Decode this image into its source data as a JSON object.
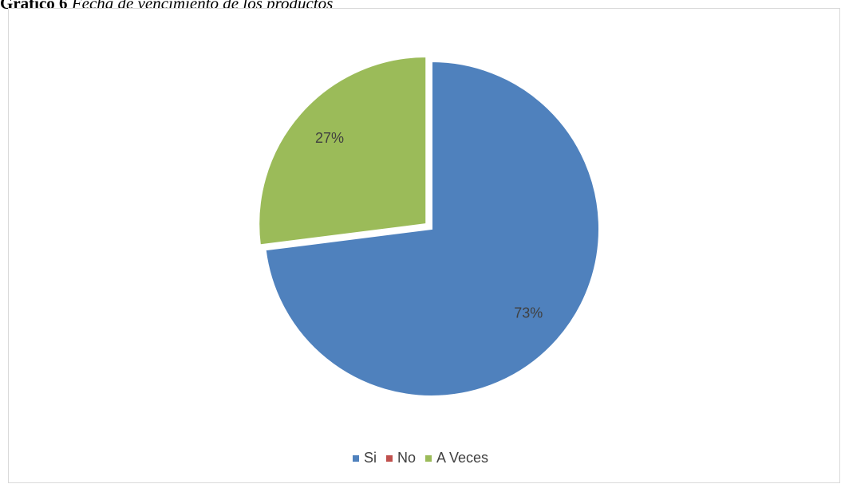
{
  "caption": {
    "lead": "Gráfico 6",
    "rest": " Fecha de vencimiento de los productos"
  },
  "chart_data": {
    "type": "pie",
    "title": "",
    "categories": [
      "Si",
      "No",
      "A Veces"
    ],
    "values": [
      73,
      0,
      27
    ],
    "data_labels": [
      "73%",
      "",
      "27%"
    ],
    "colors": [
      "#4f81bd",
      "#c0504d",
      "#9bbb59"
    ],
    "exploded": "A Veces",
    "legend_position": "bottom"
  }
}
